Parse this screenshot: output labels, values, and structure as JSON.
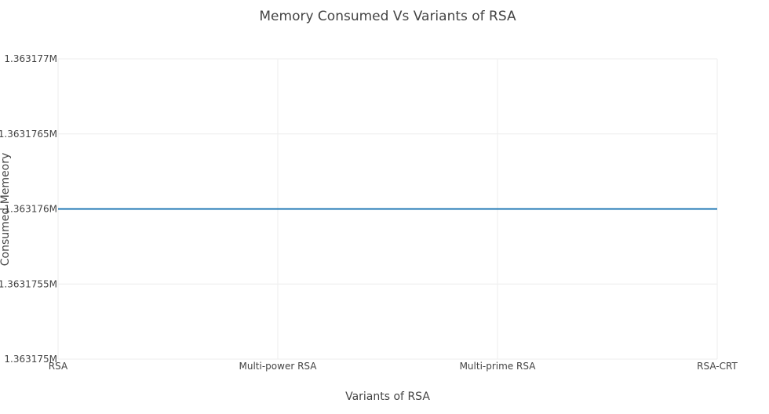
{
  "chart_data": {
    "type": "line",
    "title": "Memory Consumed Vs Variants of RSA",
    "xlabel": "Variants of RSA",
    "ylabel": "Consumed Memeory",
    "categories": [
      "RSA",
      "Multi-power RSA",
      "Multi-prime RSA",
      "RSA-CRT"
    ],
    "series": [
      {
        "values": [
          1363176,
          1363176,
          1363176,
          1363176
        ],
        "color": "#1f77b4"
      }
    ],
    "ylim": [
      1363175,
      1363177
    ],
    "yticks": [
      1363175,
      1363175.5,
      1363176,
      1363176.5,
      1363177
    ],
    "ytick_labels": [
      "1.363175M",
      "1.3631755M",
      "1.363176M",
      "1.3631765M",
      "1.363177M"
    ],
    "grid": true,
    "legend": "none"
  }
}
